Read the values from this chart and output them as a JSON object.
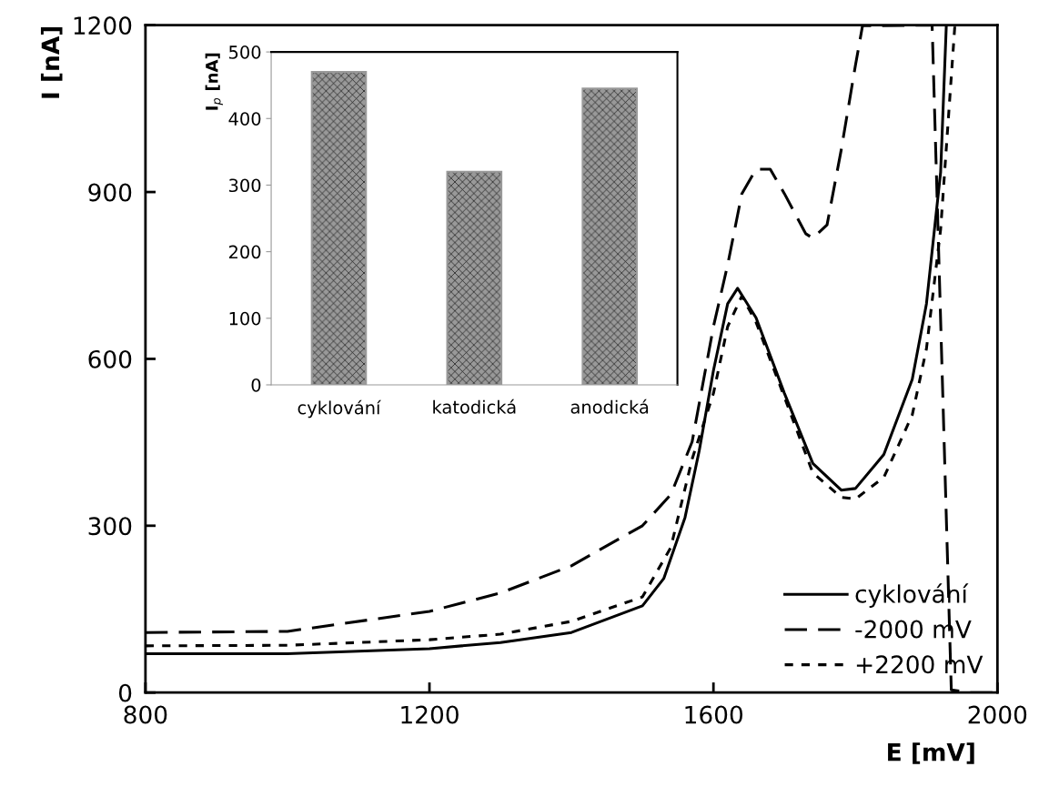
{
  "chart_data": [
    {
      "type": "line",
      "xlabel": "E [mV]",
      "ylabel": "I [nA]",
      "xlim": [
        800,
        2000
      ],
      "ylim": [
        0,
        1200
      ],
      "xticks": [
        800,
        1200,
        1600,
        2000
      ],
      "yticks": [
        0,
        300,
        600,
        900,
        1200
      ],
      "grid": false,
      "legend": "bottom right",
      "marker": "none",
      "series": [
        {
          "name": "cyklování",
          "color": "#000000",
          "line_style": "solid",
          "x": [
            800,
            1000,
            1200,
            1300,
            1400,
            1500,
            1530,
            1560,
            1580,
            1600,
            1620,
            1634,
            1660,
            1700,
            1740,
            1780,
            1800,
            1840,
            1880,
            1900,
            1920,
            1928
          ],
          "values": [
            70,
            70,
            79,
            90,
            108,
            156,
            205,
            315,
            435,
            579,
            699,
            727,
            674,
            538,
            412,
            364,
            367,
            428,
            563,
            699,
            936,
            1200
          ]
        },
        {
          "name": "-2000 mV",
          "color": "#000000",
          "line_style": "dashed",
          "x": [
            800,
            1000,
            1200,
            1300,
            1400,
            1500,
            1540,
            1570,
            1600,
            1620,
            1640,
            1660,
            1680,
            1700,
            1730,
            1740,
            1760,
            1780,
            1800,
            1810,
            1908,
            1935,
            1960,
            1998
          ],
          "values": [
            108,
            110,
            146,
            179,
            228,
            300,
            356,
            451,
            658,
            769,
            897,
            941,
            941,
            897,
            825,
            817,
            841,
            976,
            1128,
            1199,
            1200,
            5,
            0,
            0
          ]
        },
        {
          "name": "+2200 mV",
          "color": "#000000",
          "line_style": "dotted",
          "x": [
            800,
            1000,
            1200,
            1300,
            1400,
            1500,
            1540,
            1570,
            1600,
            1620,
            1640,
            1660,
            1700,
            1740,
            1780,
            1800,
            1840,
            1880,
            1900,
            1920,
            1940
          ],
          "values": [
            84,
            85,
            95,
            105,
            128,
            172,
            261,
            420,
            538,
            658,
            713,
            666,
            531,
            395,
            351,
            348,
            387,
            499,
            618,
            833,
            1199
          ]
        }
      ]
    },
    {
      "type": "bar",
      "ylabel": "I$_{p}$ [nA]",
      "categories": [
        "cyklování",
        "katodická",
        "anodická"
      ],
      "values": [
        470,
        320,
        445
      ],
      "colors": [
        "#999999",
        "#999999",
        "#999999"
      ],
      "ylim": [
        0,
        500
      ],
      "yticks": [
        0,
        100,
        200,
        300,
        400,
        500
      ],
      "grid": false,
      "legend": false
    }
  ]
}
